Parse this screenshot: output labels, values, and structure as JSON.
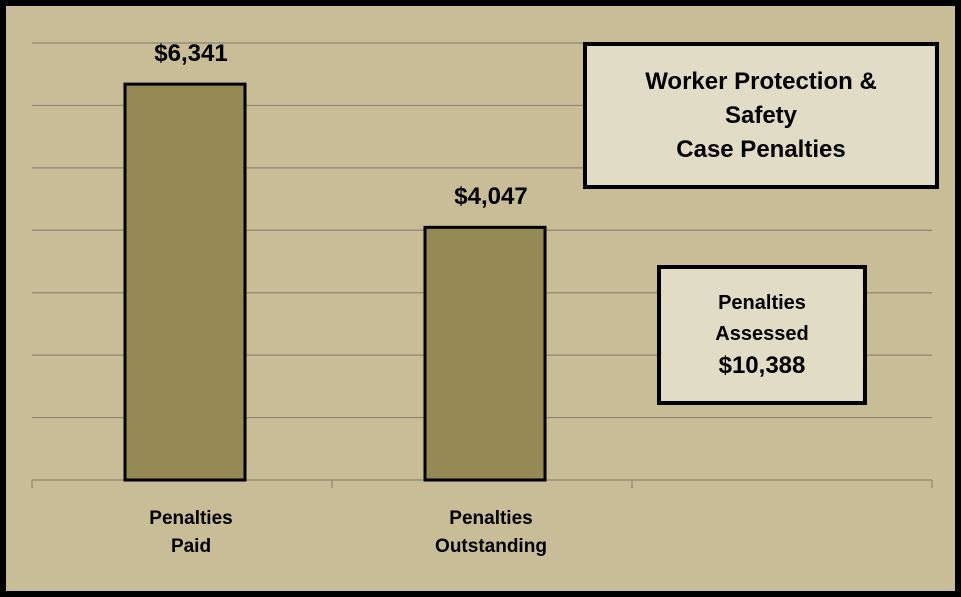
{
  "chart_data": {
    "type": "bar",
    "title": "Worker Protection &\nSafety\nCase Penalties",
    "categories": [
      "Penalties Paid",
      "Penalties Outstanding",
      null
    ],
    "values": [
      6341,
      4047,
      null
    ],
    "value_labels": [
      "$6,341",
      "$4,047",
      null
    ],
    "color": "#958a55",
    "ylim": [
      0,
      7000
    ],
    "yticks": [
      0,
      1000,
      2000,
      3000,
      4000,
      5000,
      6000,
      7000
    ],
    "grid": true,
    "annotation": {
      "label": "Penalties Assessed",
      "value": 10388,
      "value_label": "$10,388"
    }
  }
}
